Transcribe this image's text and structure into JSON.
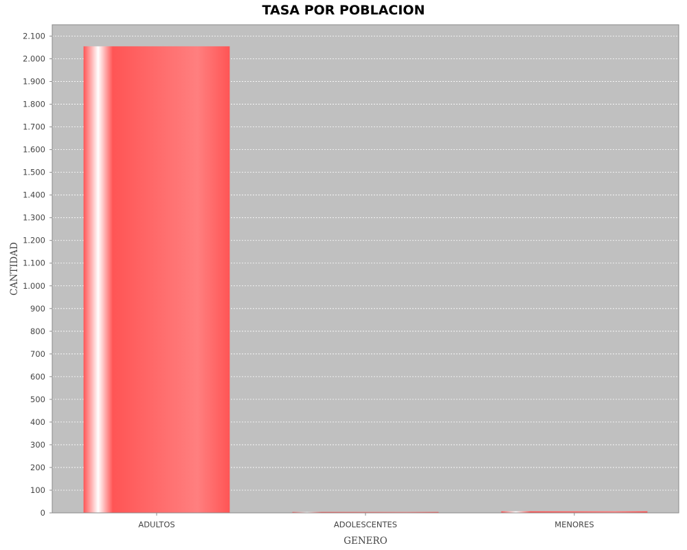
{
  "chart_data": {
    "type": "bar",
    "title": "TASA POR POBLACION",
    "xlabel": "GENERO",
    "ylabel": "CANTIDAD",
    "categories": [
      "ADULTOS",
      "ADOLESCENTES",
      "MENORES"
    ],
    "values": [
      2055,
      4,
      7
    ],
    "ylim": [
      0,
      2150
    ],
    "yticks": [
      0,
      100,
      200,
      300,
      400,
      500,
      600,
      700,
      800,
      900,
      1000,
      1100,
      1200,
      1300,
      1400,
      1500,
      1600,
      1700,
      1800,
      1900,
      2000,
      2100
    ],
    "ytick_labels": [
      "0",
      "100",
      "200",
      "300",
      "400",
      "500",
      "600",
      "700",
      "800",
      "900",
      "1.000",
      "1.100",
      "1.200",
      "1.300",
      "1.400",
      "1.500",
      "1.600",
      "1.700",
      "1.800",
      "1.900",
      "2.000",
      "2.100"
    ],
    "grid": true,
    "colors": {
      "bar": "#ff5555",
      "plot_background": "#c0c0c0",
      "gridline": "#ffffff"
    }
  }
}
